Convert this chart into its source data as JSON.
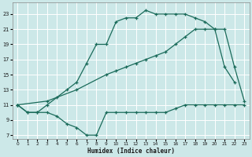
{
  "xlabel": "Humidex (Indice chaleur)",
  "background_color": "#cce8e8",
  "grid_color": "#ffffff",
  "line_color": "#1a6b5a",
  "xlim": [
    -0.5,
    23.5
  ],
  "ylim": [
    6.5,
    24.5
  ],
  "xticks": [
    0,
    1,
    2,
    3,
    4,
    5,
    6,
    7,
    8,
    9,
    10,
    11,
    12,
    13,
    14,
    15,
    16,
    17,
    18,
    19,
    20,
    21,
    22,
    23
  ],
  "yticks": [
    7,
    9,
    11,
    13,
    15,
    17,
    19,
    21,
    23
  ],
  "line1_x": [
    0,
    1,
    2,
    3,
    4,
    5,
    6,
    7,
    8,
    9,
    10,
    11,
    12,
    13,
    14,
    15,
    16,
    17,
    18,
    19,
    20,
    21,
    22,
    23
  ],
  "line1_y": [
    11,
    10,
    10,
    10,
    9.5,
    8.5,
    8,
    7,
    7,
    10,
    10,
    10,
    10,
    10,
    10,
    10,
    10.5,
    11,
    11,
    11,
    11,
    11,
    11,
    11
  ],
  "line2_x": [
    0,
    1,
    2,
    3,
    4,
    5,
    6,
    7,
    8,
    9,
    10,
    11,
    12,
    13,
    14,
    15,
    16,
    17,
    18,
    19,
    20,
    21,
    22
  ],
  "line2_y": [
    11,
    10,
    10,
    11,
    12,
    13,
    14,
    16.5,
    19,
    19,
    22,
    22.5,
    22.5,
    23.5,
    23,
    23,
    23,
    23,
    22.5,
    22,
    21,
    16,
    14
  ],
  "line3_x": [
    0,
    3,
    6,
    9,
    10,
    11,
    12,
    13,
    14,
    15,
    16,
    17,
    18,
    19,
    20,
    21,
    22,
    23
  ],
  "line3_y": [
    11,
    11.5,
    13,
    15,
    15.5,
    16,
    16.5,
    17,
    17.5,
    18,
    19,
    20,
    21,
    21,
    21,
    21,
    16,
    11.5
  ]
}
